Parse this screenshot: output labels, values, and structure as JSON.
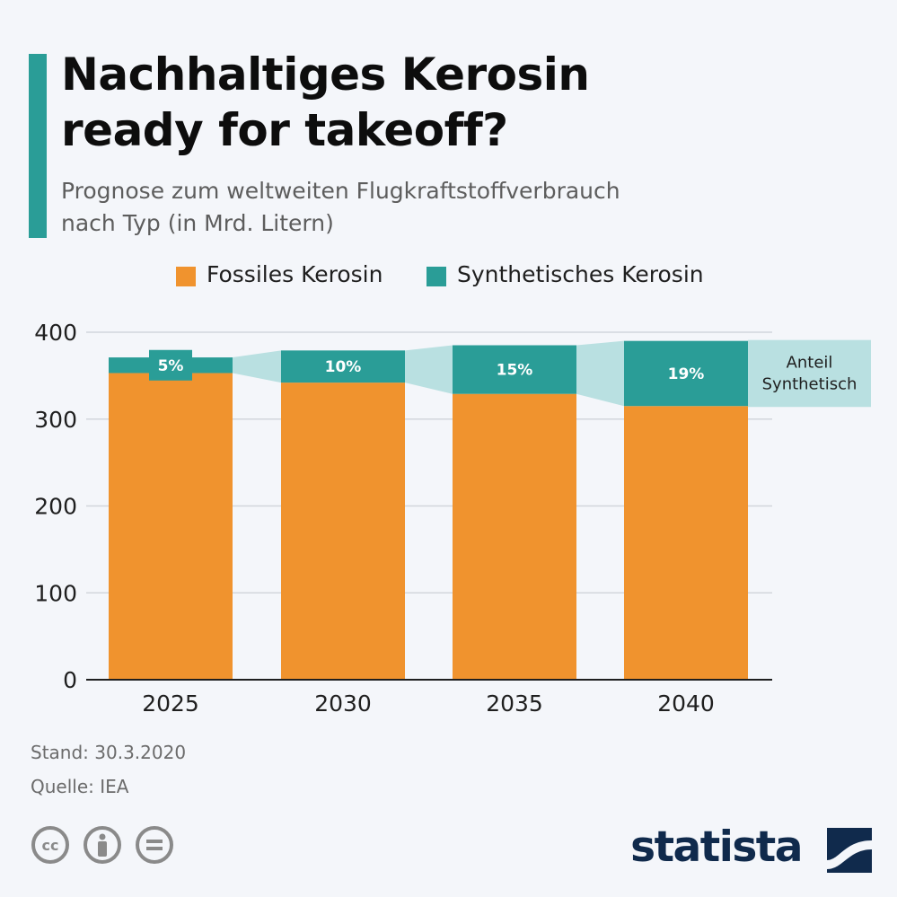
{
  "header": {
    "title_line1": "Nachhaltiges Kerosin",
    "title_line2": "ready for takeoff?",
    "subtitle_line1": "Prognose zum weltweiten Flugkraftstoffverbrauch",
    "subtitle_line2": "nach Typ (in Mrd. Litern)"
  },
  "colors": {
    "fossil": "#f0932e",
    "synthetic": "#2a9d97",
    "band": "#b9e0e1",
    "accent": "#2a9d97",
    "grid": "#d2d6dc",
    "brand": "#102a4c"
  },
  "chart_data": {
    "type": "bar",
    "stacked": true,
    "categories": [
      "2025",
      "2030",
      "2035",
      "2040"
    ],
    "series": [
      {
        "name": "Fossiles Kerosin",
        "values": [
          353,
          342,
          329,
          315
        ]
      },
      {
        "name": "Synthetisches Kerosin",
        "values": [
          18,
          37,
          56,
          75
        ]
      }
    ],
    "share_labels": [
      "5%",
      "10%",
      "15%",
      "19%"
    ],
    "share_annotation_line1": "Anteil",
    "share_annotation_line2": "Synthetisch",
    "ylim": [
      0,
      400
    ],
    "yticks": [
      "0",
      "100",
      "200",
      "300",
      "400"
    ],
    "grid": true,
    "legend_position": "top"
  },
  "footer": {
    "stand": "Stand: 30.3.2020",
    "source": "Quelle: IEA"
  },
  "brand": {
    "name": "statista",
    "icons": [
      "cc-icon",
      "by-icon",
      "nd-icon"
    ]
  }
}
